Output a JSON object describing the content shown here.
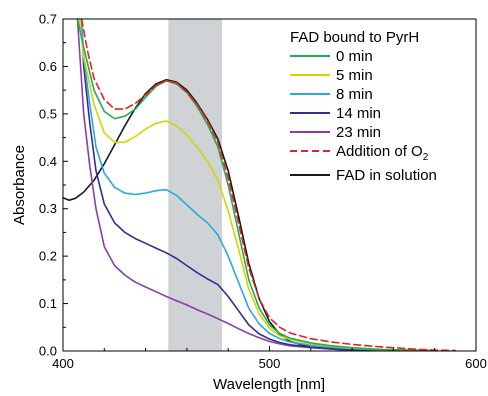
{
  "chart_data": {
    "type": "line",
    "xlabel": "Wavelength [nm]",
    "ylabel": "Absorbance",
    "xlim": [
      400,
      600
    ],
    "ylim": [
      0.0,
      0.7
    ],
    "x_ticks": [
      "400",
      "500",
      "600"
    ],
    "y_ticks": [
      "0.0",
      "0.1",
      "0.2",
      "0.3",
      "0.4",
      "0.5",
      "0.6",
      "0.7"
    ],
    "grid": false,
    "shaded_band": {
      "x_start": 451,
      "x_end": 477,
      "color": "#cfd3d6"
    },
    "legend": {
      "placement": "top-right",
      "title": "FAD bound to PyrH",
      "o2_main": "Addition of O",
      "o2_sub": "2"
    },
    "series": [
      {
        "name": "0 min",
        "color": "#1fae4f",
        "dash": false,
        "points": [
          [
            407,
            0.7
          ],
          [
            410,
            0.64
          ],
          [
            415,
            0.55
          ],
          [
            420,
            0.505
          ],
          [
            425,
            0.49
          ],
          [
            430,
            0.495
          ],
          [
            435,
            0.51
          ],
          [
            440,
            0.535
          ],
          [
            445,
            0.558
          ],
          [
            450,
            0.57
          ],
          [
            455,
            0.563
          ],
          [
            460,
            0.545
          ],
          [
            465,
            0.515
          ],
          [
            470,
            0.478
          ],
          [
            475,
            0.43
          ],
          [
            480,
            0.35
          ],
          [
            485,
            0.25
          ],
          [
            490,
            0.15
          ],
          [
            495,
            0.09
          ],
          [
            500,
            0.055
          ],
          [
            505,
            0.037
          ],
          [
            510,
            0.027
          ],
          [
            520,
            0.017
          ],
          [
            530,
            0.011
          ],
          [
            540,
            0.007
          ],
          [
            550,
            0.004
          ],
          [
            565,
            0.002
          ],
          [
            580,
            0.001
          ]
        ]
      },
      {
        "name": "5 min",
        "color": "#d4d400",
        "dash": false,
        "points": [
          [
            408,
            0.7
          ],
          [
            410,
            0.62
          ],
          [
            415,
            0.52
          ],
          [
            420,
            0.46
          ],
          [
            425,
            0.44
          ],
          [
            430,
            0.44
          ],
          [
            435,
            0.452
          ],
          [
            440,
            0.468
          ],
          [
            445,
            0.48
          ],
          [
            450,
            0.485
          ],
          [
            455,
            0.475
          ],
          [
            460,
            0.455
          ],
          [
            465,
            0.43
          ],
          [
            470,
            0.4
          ],
          [
            475,
            0.36
          ],
          [
            480,
            0.295
          ],
          [
            485,
            0.215
          ],
          [
            490,
            0.13
          ],
          [
            495,
            0.078
          ],
          [
            500,
            0.048
          ],
          [
            505,
            0.032
          ],
          [
            510,
            0.024
          ],
          [
            520,
            0.015
          ],
          [
            530,
            0.01
          ],
          [
            540,
            0.006
          ],
          [
            550,
            0.004
          ],
          [
            565,
            0.002
          ],
          [
            580,
            0.001
          ]
        ]
      },
      {
        "name": "8 min",
        "color": "#2aa8e0",
        "dash": false,
        "points": [
          [
            409,
            0.7
          ],
          [
            410,
            0.62
          ],
          [
            413,
            0.52
          ],
          [
            416,
            0.43
          ],
          [
            420,
            0.375
          ],
          [
            425,
            0.345
          ],
          [
            430,
            0.333
          ],
          [
            435,
            0.33
          ],
          [
            440,
            0.333
          ],
          [
            445,
            0.338
          ],
          [
            450,
            0.34
          ],
          [
            455,
            0.328
          ],
          [
            460,
            0.308
          ],
          [
            465,
            0.288
          ],
          [
            470,
            0.27
          ],
          [
            475,
            0.245
          ],
          [
            480,
            0.2
          ],
          [
            485,
            0.145
          ],
          [
            490,
            0.09
          ],
          [
            495,
            0.057
          ],
          [
            500,
            0.037
          ],
          [
            505,
            0.026
          ],
          [
            510,
            0.019
          ],
          [
            520,
            0.012
          ],
          [
            530,
            0.008
          ],
          [
            540,
            0.005
          ],
          [
            550,
            0.003
          ],
          [
            565,
            0.002
          ],
          [
            580,
            0.001
          ]
        ]
      },
      {
        "name": "14 min",
        "color": "#2e3192",
        "dash": false,
        "points": [
          [
            409,
            0.7
          ],
          [
            410,
            0.6
          ],
          [
            413,
            0.48
          ],
          [
            416,
            0.38
          ],
          [
            420,
            0.31
          ],
          [
            425,
            0.27
          ],
          [
            430,
            0.25
          ],
          [
            435,
            0.237
          ],
          [
            440,
            0.227
          ],
          [
            445,
            0.217
          ],
          [
            450,
            0.207
          ],
          [
            455,
            0.195
          ],
          [
            460,
            0.18
          ],
          [
            465,
            0.165
          ],
          [
            470,
            0.152
          ],
          [
            475,
            0.14
          ],
          [
            480,
            0.115
          ],
          [
            485,
            0.085
          ],
          [
            490,
            0.055
          ],
          [
            495,
            0.036
          ],
          [
            500,
            0.025
          ],
          [
            505,
            0.018
          ],
          [
            510,
            0.013
          ],
          [
            520,
            0.008
          ],
          [
            530,
            0.005
          ],
          [
            540,
            0.003
          ],
          [
            550,
            0.002
          ],
          [
            565,
            0.001
          ]
        ]
      },
      {
        "name": "23 min",
        "color": "#8a3fa8",
        "dash": false,
        "points": [
          [
            407,
            0.7
          ],
          [
            410,
            0.5
          ],
          [
            413,
            0.39
          ],
          [
            416,
            0.3
          ],
          [
            420,
            0.22
          ],
          [
            425,
            0.18
          ],
          [
            430,
            0.16
          ],
          [
            435,
            0.145
          ],
          [
            440,
            0.135
          ],
          [
            445,
            0.125
          ],
          [
            450,
            0.115
          ],
          [
            455,
            0.106
          ],
          [
            460,
            0.097
          ],
          [
            465,
            0.087
          ],
          [
            470,
            0.078
          ],
          [
            475,
            0.068
          ],
          [
            480,
            0.058
          ],
          [
            485,
            0.047
          ],
          [
            490,
            0.037
          ],
          [
            495,
            0.028
          ],
          [
            500,
            0.02
          ],
          [
            505,
            0.015
          ],
          [
            510,
            0.011
          ],
          [
            520,
            0.007
          ],
          [
            530,
            0.004
          ],
          [
            540,
            0.002
          ],
          [
            550,
            0.001
          ]
        ]
      },
      {
        "name": "Addition of O2",
        "color": "#e8202a",
        "dash": true,
        "points": [
          [
            409,
            0.7
          ],
          [
            412,
            0.63
          ],
          [
            415,
            0.575
          ],
          [
            420,
            0.53
          ],
          [
            425,
            0.51
          ],
          [
            430,
            0.51
          ],
          [
            435,
            0.522
          ],
          [
            440,
            0.54
          ],
          [
            445,
            0.56
          ],
          [
            450,
            0.57
          ],
          [
            455,
            0.565
          ],
          [
            460,
            0.545
          ],
          [
            465,
            0.52
          ],
          [
            470,
            0.485
          ],
          [
            475,
            0.44
          ],
          [
            480,
            0.365
          ],
          [
            485,
            0.27
          ],
          [
            490,
            0.175
          ],
          [
            495,
            0.11
          ],
          [
            500,
            0.07
          ],
          [
            505,
            0.05
          ],
          [
            510,
            0.038
          ],
          [
            520,
            0.026
          ],
          [
            530,
            0.019
          ],
          [
            540,
            0.014
          ],
          [
            550,
            0.01
          ],
          [
            560,
            0.007
          ],
          [
            570,
            0.004
          ],
          [
            580,
            0.002
          ],
          [
            590,
            0.001
          ]
        ]
      },
      {
        "name": "FAD in solution",
        "color": "#1a1a1a",
        "dash": false,
        "points": [
          [
            400,
            0.323
          ],
          [
            403,
            0.318
          ],
          [
            406,
            0.322
          ],
          [
            410,
            0.335
          ],
          [
            415,
            0.36
          ],
          [
            420,
            0.395
          ],
          [
            425,
            0.435
          ],
          [
            430,
            0.475
          ],
          [
            435,
            0.512
          ],
          [
            440,
            0.543
          ],
          [
            445,
            0.563
          ],
          [
            450,
            0.572
          ],
          [
            455,
            0.567
          ],
          [
            460,
            0.55
          ],
          [
            465,
            0.522
          ],
          [
            470,
            0.488
          ],
          [
            475,
            0.447
          ],
          [
            480,
            0.38
          ],
          [
            485,
            0.285
          ],
          [
            490,
            0.185
          ],
          [
            495,
            0.11
          ],
          [
            500,
            0.062
          ],
          [
            505,
            0.035
          ],
          [
            510,
            0.02
          ],
          [
            520,
            0.008
          ],
          [
            530,
            0.004
          ],
          [
            540,
            0.002
          ],
          [
            550,
            0.001
          ]
        ]
      }
    ]
  }
}
